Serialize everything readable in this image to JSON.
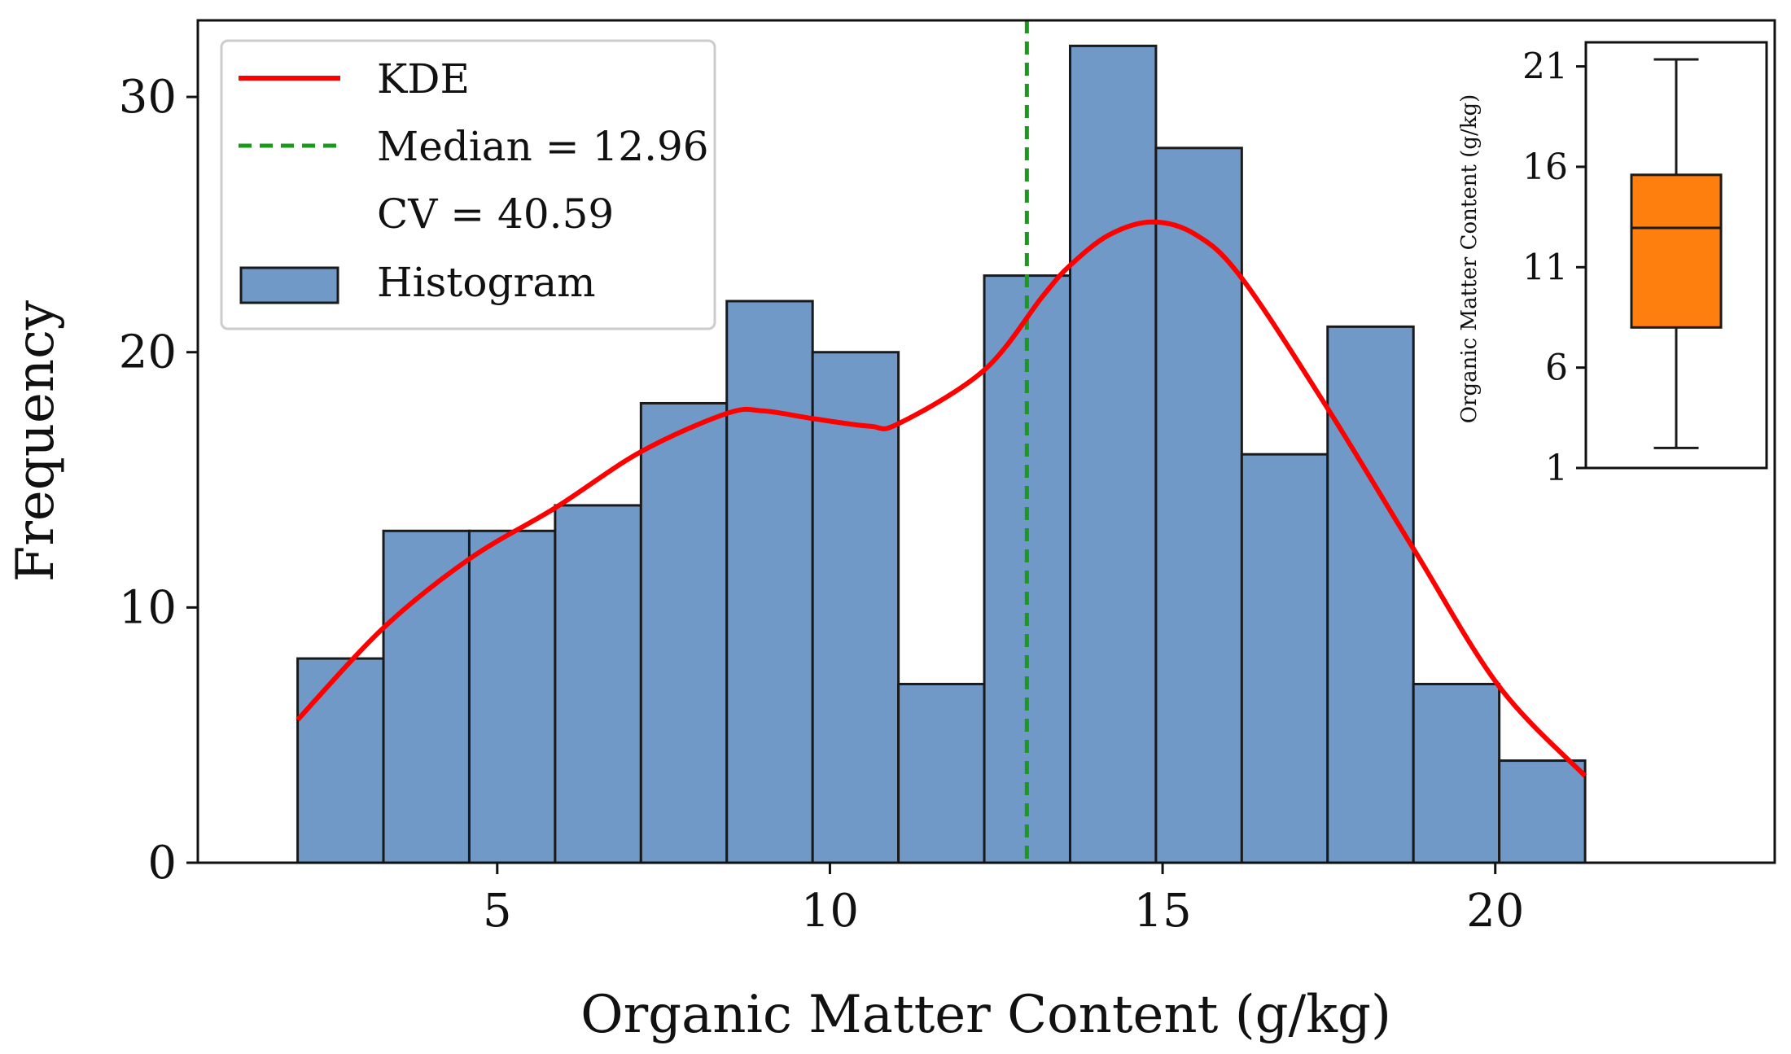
{
  "chart_data": [
    {
      "type": "bar",
      "subtype": "histogram_with_kde",
      "title": "",
      "xlabel": "Organic Matter Content (g/kg)",
      "ylabel": "Frequency",
      "xlim": [
        0.5,
        24.2
      ],
      "ylim": [
        0,
        33
      ],
      "xticks": [
        5,
        10,
        15,
        20
      ],
      "yticks": [
        0,
        10,
        20,
        30
      ],
      "grid": false,
      "colors": {
        "bar_fill": "#7199c7",
        "bar_edge": "#1a1a1a",
        "kde": "#ff0000",
        "median_line": "#1a9a1a"
      },
      "histogram": {
        "name": "Histogram",
        "bin_edges": [
          2.0,
          3.29,
          4.58,
          5.87,
          7.16,
          8.45,
          9.74,
          11.03,
          12.32,
          13.61,
          14.9,
          16.19,
          17.48,
          18.77,
          20.06,
          21.35
        ],
        "counts": [
          8,
          13,
          13,
          14,
          18,
          22,
          20,
          7,
          23,
          32,
          28,
          16,
          21,
          7,
          4
        ]
      },
      "kde": {
        "name": "KDE",
        "x": [
          2.0,
          3.29,
          4.58,
          5.87,
          7.16,
          8.45,
          9.0,
          9.74,
          10.6,
          11.03,
          12.32,
          13.2,
          13.61,
          14.2,
          14.85,
          15.5,
          16.19,
          17.48,
          18.77,
          20.06,
          21.35
        ],
        "y": [
          5.6,
          9.2,
          11.9,
          13.9,
          16.1,
          17.6,
          17.7,
          17.4,
          17.1,
          17.2,
          19.3,
          22.2,
          23.4,
          24.6,
          25.1,
          24.6,
          22.9,
          17.8,
          12.3,
          6.9,
          3.4
        ]
      },
      "median": {
        "value": 12.96,
        "label": "Median = 12.96"
      },
      "cv": {
        "value": 40.59,
        "label": "CV = 40.59"
      },
      "legend": {
        "position": "upper left",
        "entries": [
          "KDE",
          "Median = 12.96",
          "CV = 40.59",
          "Histogram"
        ]
      },
      "xtick_labels": [
        "5",
        "10",
        "15",
        "20"
      ],
      "ytick_labels": [
        "0",
        "10",
        "20",
        "30"
      ]
    },
    {
      "type": "box",
      "title": "",
      "ylabel": "Organic Matter Content (g/kg)",
      "ylim": [
        1,
        22.2
      ],
      "yticks": [
        1,
        6,
        11,
        16,
        21
      ],
      "ytick_labels": [
        "1",
        "6",
        "11",
        "16",
        "21"
      ],
      "box": {
        "whisker_low": 2.0,
        "q1": 8.0,
        "median": 12.96,
        "q3": 15.6,
        "whisker_high": 21.35
      },
      "colors": {
        "box_fill": "#ff7f0e",
        "edge": "#1a1a1a"
      },
      "placement": "inset top-right"
    }
  ]
}
